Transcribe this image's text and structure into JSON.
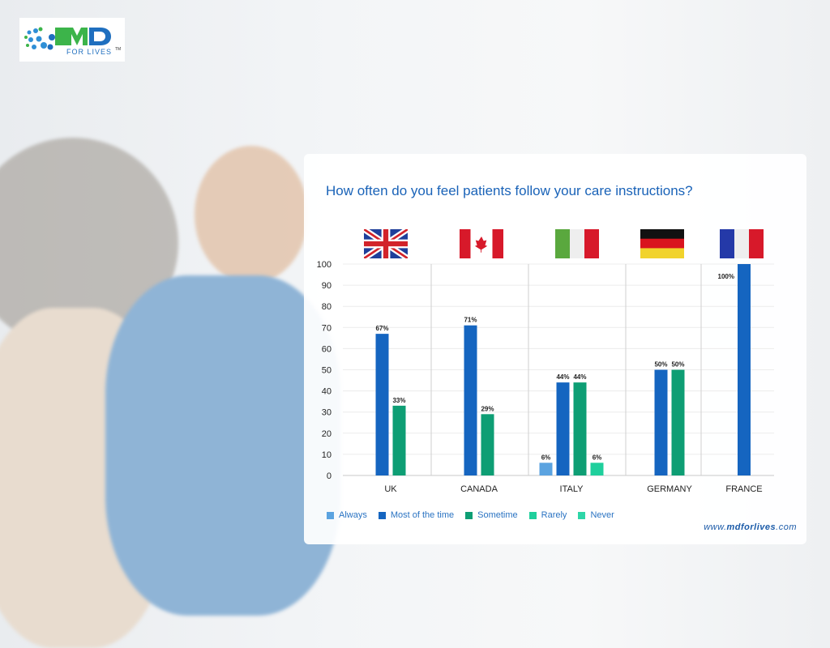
{
  "logo": {
    "text": "MD",
    "subtext": "FOR LIVES",
    "tm": "TM"
  },
  "website": {
    "prefix": "www.",
    "brand": "mdforlives",
    "suffix": ".com"
  },
  "chart_data": {
    "type": "bar",
    "title": "How often do you feel patients follow your care instructions?",
    "categories": [
      "UK",
      "CANADA",
      "ITALY",
      "GERMANY",
      "FRANCE"
    ],
    "flags": [
      "uk-flag",
      "canada-flag",
      "italy-flag",
      "germany-flag",
      "france-flag"
    ],
    "ylim": [
      0,
      100
    ],
    "yticks": [
      0,
      10,
      20,
      30,
      40,
      50,
      60,
      70,
      80,
      90,
      100
    ],
    "grid": true,
    "legend_position": "bottom-left",
    "series": [
      {
        "name": "Always",
        "color": "#5ba3e0",
        "values": [
          null,
          null,
          6,
          null,
          null
        ]
      },
      {
        "name": "Most of the time",
        "color": "#1565c0",
        "values": [
          67,
          71,
          44,
          50,
          100
        ]
      },
      {
        "name": "Sometime",
        "color": "#0e9e74",
        "values": [
          33,
          29,
          44,
          50,
          null
        ]
      },
      {
        "name": "Rarely",
        "color": "#1fcf9c",
        "values": [
          null,
          null,
          6,
          null,
          null
        ]
      },
      {
        "name": "Never",
        "color": "#2ed6a8",
        "values": [
          null,
          null,
          null,
          null,
          null
        ]
      }
    ],
    "data_labels": [
      [
        "67%",
        "33%"
      ],
      [
        "71%",
        "29%"
      ],
      [
        "6%",
        "44%",
        "44%",
        "6%"
      ],
      [
        "50%",
        "50%"
      ],
      [
        "100%"
      ]
    ]
  }
}
